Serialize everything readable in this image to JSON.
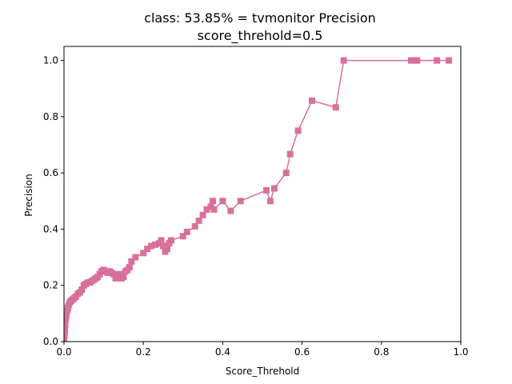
{
  "chart_data": {
    "type": "line",
    "title_line1": "class: 53.85% = tvmonitor Precision",
    "title_line2": "score_threhold=0.5",
    "xlabel": "Score_Threhold",
    "ylabel": "Precision",
    "xlim": [
      0,
      1
    ],
    "ylim": [
      0,
      1.05
    ],
    "xticks": [
      "0.0",
      "0.2",
      "0.4",
      "0.6",
      "0.8",
      "1.0"
    ],
    "yticks": [
      "0.0",
      "0.2",
      "0.4",
      "0.6",
      "0.8",
      "1.0"
    ],
    "grid": false,
    "series": [
      {
        "color": "#d8709a",
        "marker": "square",
        "x": [
          0.0,
          0.001,
          0.002,
          0.003,
          0.004,
          0.005,
          0.006,
          0.008,
          0.01,
          0.012,
          0.015,
          0.018,
          0.022,
          0.026,
          0.03,
          0.035,
          0.04,
          0.045,
          0.05,
          0.055,
          0.06,
          0.065,
          0.07,
          0.075,
          0.08,
          0.085,
          0.09,
          0.095,
          0.1,
          0.105,
          0.11,
          0.115,
          0.12,
          0.125,
          0.13,
          0.135,
          0.14,
          0.145,
          0.15,
          0.155,
          0.16,
          0.165,
          0.17,
          0.18,
          0.2,
          0.21,
          0.22,
          0.23,
          0.24,
          0.245,
          0.25,
          0.255,
          0.26,
          0.265,
          0.27,
          0.3,
          0.31,
          0.33,
          0.34,
          0.35,
          0.36,
          0.37,
          0.375,
          0.378,
          0.4,
          0.42,
          0.445,
          0.51,
          0.52,
          0.53,
          0.56,
          0.57,
          0.59,
          0.625,
          0.685,
          0.705,
          0.875,
          0.885,
          0.89,
          0.94,
          0.97
        ],
        "y": [
          0.0,
          0.02,
          0.04,
          0.06,
          0.08,
          0.09,
          0.1,
          0.11,
          0.12,
          0.13,
          0.14,
          0.145,
          0.15,
          0.155,
          0.16,
          0.17,
          0.175,
          0.185,
          0.2,
          0.205,
          0.21,
          0.21,
          0.215,
          0.22,
          0.225,
          0.23,
          0.24,
          0.25,
          0.255,
          0.25,
          0.245,
          0.25,
          0.245,
          0.24,
          0.225,
          0.23,
          0.24,
          0.225,
          0.23,
          0.25,
          0.255,
          0.265,
          0.285,
          0.3,
          0.315,
          0.33,
          0.34,
          0.345,
          0.35,
          0.36,
          0.34,
          0.32,
          0.33,
          0.35,
          0.36,
          0.375,
          0.39,
          0.41,
          0.43,
          0.45,
          0.47,
          0.48,
          0.5,
          0.47,
          0.5,
          0.465,
          0.5,
          0.538,
          0.5,
          0.545,
          0.6,
          0.667,
          0.75,
          0.857,
          0.833,
          1.0,
          1.0,
          1.0,
          1.0,
          1.0,
          1.0
        ]
      }
    ]
  }
}
